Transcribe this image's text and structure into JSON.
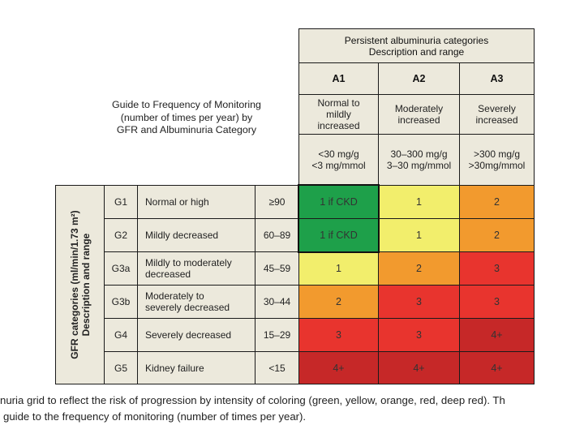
{
  "guide_title": [
    "Guide to Frequency of Monitoring",
    "(number of times per year) by",
    "GFR and Albuminuria Category"
  ],
  "albuminuria_header": {
    "title": [
      "Persistent albuminuria categories",
      "Description  and range"
    ],
    "columns": [
      {
        "code": "A1",
        "description": [
          "Normal to",
          "mildly",
          "increased"
        ],
        "range": [
          "<30 mg/g",
          "<3 mg/mmol"
        ]
      },
      {
        "code": "A2",
        "description": [
          "Moderately",
          "increased"
        ],
        "range": [
          "30–300 mg/g",
          "3–30 mg/mmol"
        ]
      },
      {
        "code": "A3",
        "description": [
          "Severely",
          "increased"
        ],
        "range": [
          ">300 mg/g",
          ">30mg/mmol"
        ]
      }
    ]
  },
  "gfr_axis_label": [
    "GFR categories (ml/min/1.73 m²)",
    "Description and range"
  ],
  "rows": [
    {
      "code": "G1",
      "description": [
        "Normal or high"
      ],
      "range": "≥90",
      "cells": [
        "1 if CKD",
        "1",
        "2"
      ]
    },
    {
      "code": "G2",
      "description": [
        "Mildly decreased"
      ],
      "range": "60–89",
      "cells": [
        "1 if CKD",
        "1",
        "2"
      ]
    },
    {
      "code": "G3a",
      "description": [
        "Mildly to moderately",
        "decreased"
      ],
      "range": "45–59",
      "cells": [
        "1",
        "2",
        "3"
      ]
    },
    {
      "code": "G3b",
      "description": [
        "Moderately to",
        "severely decreased"
      ],
      "range": "30–44",
      "cells": [
        "2",
        "3",
        "3"
      ]
    },
    {
      "code": "G4",
      "description": [
        "Severely decreased"
      ],
      "range": "15–29",
      "cells": [
        "3",
        "3",
        "4+"
      ]
    },
    {
      "code": "G5",
      "description": [
        "Kidney failure"
      ],
      "range": "<15",
      "cells": [
        "4+",
        "4+",
        "4+"
      ]
    }
  ],
  "cell_colors": [
    [
      "green",
      "yellow",
      "orange"
    ],
    [
      "green",
      "yellow",
      "orange"
    ],
    [
      "yellow",
      "orange",
      "red"
    ],
    [
      "orange",
      "red",
      "red"
    ],
    [
      "red",
      "red",
      "deep"
    ],
    [
      "deep",
      "deep",
      "deep"
    ]
  ],
  "palette": {
    "green": "#1ea04a",
    "yellow": "#f2ee6c",
    "orange": "#f29a2e",
    "red": "#e8342e",
    "deep": "#c62828",
    "header_bg": "#ece9dc"
  },
  "caption": [
    "nuria grid to reflect the risk of progression by intensity of coloring (green, yellow, orange, red, deep red). Th",
    "guide to the frequency of monitoring (number of times per year)."
  ]
}
